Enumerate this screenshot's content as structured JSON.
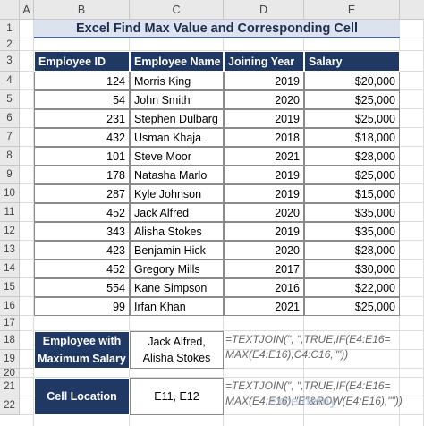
{
  "columns": [
    "A",
    "B",
    "C",
    "D",
    "E"
  ],
  "row_numbers": [
    1,
    2,
    3,
    4,
    5,
    6,
    7,
    8,
    9,
    10,
    11,
    12,
    13,
    14,
    15,
    16,
    17,
    18,
    19,
    20,
    21,
    22
  ],
  "title": "Excel Find Max Value and Corresponding Cell",
  "table": {
    "headers": [
      "Employee ID",
      "Employee Name",
      "Joining Year",
      "Salary"
    ],
    "rows": [
      [
        124,
        "Morris King",
        2019,
        "$20,000"
      ],
      [
        54,
        "John Smith",
        2020,
        "$25,000"
      ],
      [
        231,
        "Stephen Dulbarg",
        2019,
        "$25,000"
      ],
      [
        432,
        "Usman Khaja",
        2018,
        "$18,000"
      ],
      [
        101,
        "Steve Moor",
        2021,
        "$28,000"
      ],
      [
        178,
        "Natasha Marlo",
        2019,
        "$25,000"
      ],
      [
        287,
        "Kyle Johnson",
        2019,
        "$15,000"
      ],
      [
        452,
        "Jack Alfred",
        2020,
        "$35,000"
      ],
      [
        343,
        "Alisha Stokes",
        2019,
        "$35,000"
      ],
      [
        423,
        "Benjamin Hick",
        2020,
        "$28,000"
      ],
      [
        452,
        "Gregory Mills",
        2017,
        "$30,000"
      ],
      [
        554,
        "Kane Simpson",
        2016,
        "$22,000"
      ],
      [
        99,
        "Irfan Khan",
        2021,
        "$25,000"
      ]
    ]
  },
  "lookup": {
    "label": "Employee with Maximum Salary",
    "result": "Jack Alfred, Alisha Stokes",
    "formula_lines": [
      "=TEXTJOIN(\", \",TRUE,IF(E4:E16=",
      "MAX(E4:E16),C4:C16,\"\"))"
    ]
  },
  "location": {
    "label": "Cell Location",
    "result": "E11, E12",
    "formula_lines": [
      "=TEXTJOIN(\", \",TRUE,IF(E4:E16=",
      "MAX(E4:E16),\"E\"&ROW(E4:E16),\"\"))"
    ]
  },
  "watermark": "exceldemy"
}
